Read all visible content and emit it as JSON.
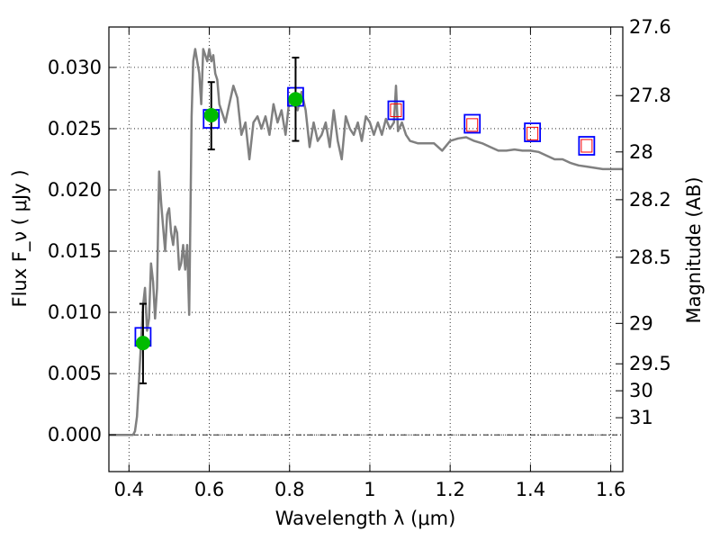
{
  "chart_data": {
    "type": "scatter",
    "xlabel": "Wavelength  λ (μm)",
    "ylabel": "Flux  F_ν  ( μJy )",
    "y2label": "Magnitude (AB)",
    "xlim": [
      0.35,
      1.63
    ],
    "ylim": [
      -0.003,
      0.0333
    ],
    "grid": true,
    "x_ticks": [
      {
        "value": 0.4,
        "label": "0.4"
      },
      {
        "value": 0.6,
        "label": "0.6"
      },
      {
        "value": 0.8,
        "label": "0.8"
      },
      {
        "value": 1.0,
        "label": "1"
      },
      {
        "value": 1.2,
        "label": "1.2"
      },
      {
        "value": 1.4,
        "label": "1.4"
      },
      {
        "value": 1.6,
        "label": "1.6"
      }
    ],
    "y_ticks": [
      {
        "value": 0.0,
        "label": "0.000"
      },
      {
        "value": 0.005,
        "label": "0.005"
      },
      {
        "value": 0.01,
        "label": "0.010"
      },
      {
        "value": 0.015,
        "label": "0.015"
      },
      {
        "value": 0.02,
        "label": "0.020"
      },
      {
        "value": 0.025,
        "label": "0.025"
      },
      {
        "value": 0.03,
        "label": "0.030"
      }
    ],
    "y2_ticks": [
      {
        "flux": 0.0333,
        "label": "27.6"
      },
      {
        "flux": 0.0277,
        "label": "27.8"
      },
      {
        "flux": 0.0231,
        "label": "28"
      },
      {
        "flux": 0.0192,
        "label": "28.2"
      },
      {
        "flux": 0.0145,
        "label": "28.5"
      },
      {
        "flux": 0.0091,
        "label": "29"
      },
      {
        "flux": 0.0058,
        "label": "29.5"
      },
      {
        "flux": 0.0036,
        "label": "30"
      },
      {
        "flux": 0.0014,
        "label": "31"
      }
    ],
    "series": [
      {
        "kind": "line",
        "color": "#808080",
        "x": [
          0.35,
          0.4,
          0.41,
          0.415,
          0.42,
          0.425,
          0.43,
          0.435,
          0.44,
          0.445,
          0.45,
          0.455,
          0.46,
          0.465,
          0.47,
          0.475,
          0.48,
          0.485,
          0.49,
          0.495,
          0.5,
          0.505,
          0.51,
          0.515,
          0.52,
          0.525,
          0.53,
          0.535,
          0.54,
          0.545,
          0.55,
          0.553,
          0.556,
          0.56,
          0.565,
          0.57,
          0.575,
          0.58,
          0.585,
          0.59,
          0.595,
          0.6,
          0.605,
          0.61,
          0.615,
          0.62,
          0.625,
          0.63,
          0.64,
          0.65,
          0.66,
          0.67,
          0.68,
          0.69,
          0.7,
          0.71,
          0.72,
          0.73,
          0.74,
          0.75,
          0.76,
          0.77,
          0.78,
          0.79,
          0.8,
          0.81,
          0.82,
          0.83,
          0.84,
          0.85,
          0.86,
          0.87,
          0.88,
          0.89,
          0.9,
          0.91,
          0.92,
          0.93,
          0.94,
          0.95,
          0.96,
          0.97,
          0.98,
          0.99,
          1.0,
          1.01,
          1.02,
          1.03,
          1.04,
          1.05,
          1.06,
          1.065,
          1.07,
          1.08,
          1.09,
          1.1,
          1.12,
          1.14,
          1.16,
          1.18,
          1.2,
          1.22,
          1.24,
          1.26,
          1.28,
          1.3,
          1.32,
          1.34,
          1.36,
          1.38,
          1.4,
          1.42,
          1.44,
          1.46,
          1.48,
          1.5,
          1.52,
          1.54,
          1.56,
          1.58,
          1.6,
          1.63
        ],
        "y": [
          0.0,
          0.0,
          0.0,
          0.0003,
          0.0015,
          0.0045,
          0.0075,
          0.0105,
          0.012,
          0.0085,
          0.0095,
          0.014,
          0.0125,
          0.0095,
          0.012,
          0.0215,
          0.019,
          0.017,
          0.015,
          0.018,
          0.0185,
          0.0165,
          0.0155,
          0.017,
          0.0165,
          0.0135,
          0.014,
          0.0155,
          0.0135,
          0.0155,
          0.0098,
          0.018,
          0.026,
          0.0305,
          0.0315,
          0.0305,
          0.0295,
          0.027,
          0.0315,
          0.031,
          0.0305,
          0.0315,
          0.0305,
          0.031,
          0.0295,
          0.029,
          0.027,
          0.0265,
          0.0255,
          0.027,
          0.0285,
          0.0275,
          0.0245,
          0.0255,
          0.0225,
          0.0255,
          0.026,
          0.025,
          0.026,
          0.0245,
          0.027,
          0.0255,
          0.0265,
          0.0245,
          0.0275,
          0.027,
          0.0265,
          0.028,
          0.0265,
          0.0235,
          0.0255,
          0.024,
          0.0245,
          0.0255,
          0.0235,
          0.0265,
          0.024,
          0.0225,
          0.026,
          0.025,
          0.0245,
          0.0255,
          0.024,
          0.026,
          0.0255,
          0.0245,
          0.0255,
          0.0245,
          0.0258,
          0.025,
          0.0255,
          0.0285,
          0.0248,
          0.0255,
          0.0245,
          0.024,
          0.0238,
          0.0238,
          0.0238,
          0.0232,
          0.024,
          0.0242,
          0.0243,
          0.024,
          0.0238,
          0.0235,
          0.0232,
          0.0232,
          0.0233,
          0.0232,
          0.0232,
          0.0231,
          0.0228,
          0.0225,
          0.0225,
          0.0222,
          0.022,
          0.0219,
          0.0218,
          0.0217,
          0.0217,
          0.0217
        ]
      },
      {
        "kind": "observed",
        "color": "#00bb00",
        "x": [
          0.435,
          0.605,
          0.815
        ],
        "y": [
          0.0075,
          0.0261,
          0.0274
        ],
        "yerr_low": [
          0.0042,
          0.0233,
          0.024
        ],
        "yerr_high": [
          0.0107,
          0.0288,
          0.0308
        ]
      },
      {
        "kind": "model-photometry",
        "color": "#0000ff",
        "x": [
          0.435,
          0.605,
          0.815,
          1.065,
          1.255,
          1.405,
          1.54
        ],
        "y": [
          0.008,
          0.0258,
          0.0276,
          0.0265,
          0.0254,
          0.0247,
          0.0236
        ]
      },
      {
        "kind": "model-photometry-inner",
        "color": "#ff0000",
        "x": [
          1.065,
          1.255,
          1.405,
          1.54
        ],
        "y": [
          0.0265,
          0.0253,
          0.0246,
          0.0236
        ]
      }
    ]
  }
}
